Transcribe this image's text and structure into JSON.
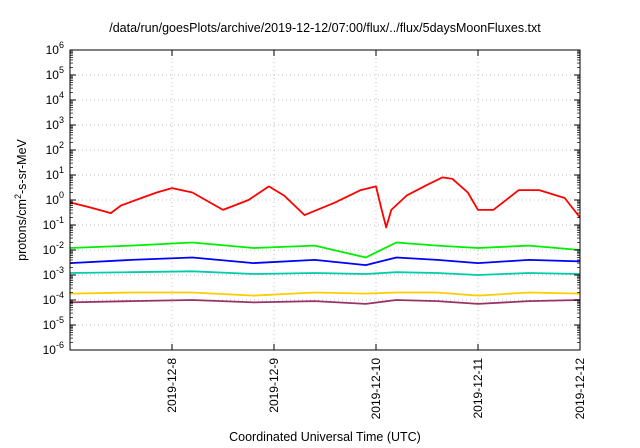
{
  "chart_data": {
    "type": "line",
    "title": "/data/run/goesPlots/archive/2019-12-12/07:00/flux/../flux/5daysMoonFluxes.txt",
    "xlabel": "Coordinated Universal Time (UTC)",
    "ylabel": {
      "prefix": "protons/cm",
      "sup": "2",
      "suffix": "-s-sr-MeV"
    },
    "yscale": "log",
    "ylim_exp": [
      -6,
      6
    ],
    "y_ticks": [
      {
        "base": "10",
        "exp": "6"
      },
      {
        "base": "10",
        "exp": "5"
      },
      {
        "base": "10",
        "exp": "4"
      },
      {
        "base": "10",
        "exp": "3"
      },
      {
        "base": "10",
        "exp": "2"
      },
      {
        "base": "10",
        "exp": "1"
      },
      {
        "base": "10",
        "exp": "0"
      },
      {
        "base": "10",
        "exp": "-1"
      },
      {
        "base": "10",
        "exp": "-2"
      },
      {
        "base": "10",
        "exp": "-3"
      },
      {
        "base": "10",
        "exp": "-4"
      },
      {
        "base": "10",
        "exp": "-5"
      },
      {
        "base": "10",
        "exp": "-6"
      }
    ],
    "xlim": [
      "2019-12-07 07:00",
      "2019-12-12 07:00"
    ],
    "x_ticks": [
      "2019-12-8",
      "2019-12-9",
      "2019-12-10",
      "2019-12-11",
      "2019-12-12"
    ],
    "grid": true,
    "series": [
      {
        "color": "#ff0000",
        "x": [
          0.0,
          0.2,
          0.4,
          0.5,
          0.7,
          0.85,
          1.0,
          1.2,
          1.5,
          1.75,
          1.95,
          2.1,
          2.3,
          2.6,
          2.85,
          3.0,
          3.05,
          3.1,
          3.15,
          3.3,
          3.5,
          3.65,
          3.75,
          3.9,
          4.0,
          4.15,
          4.4,
          4.6,
          4.85,
          5.0
        ],
        "y": [
          0.8,
          0.5,
          0.3,
          0.6,
          1.2,
          2.0,
          3.0,
          2.0,
          0.4,
          1.0,
          3.5,
          1.5,
          0.25,
          0.8,
          2.5,
          3.5,
          0.5,
          0.08,
          0.4,
          1.5,
          4.0,
          8.0,
          7.0,
          2.0,
          0.4,
          0.4,
          2.5,
          2.5,
          1.2,
          0.2
        ]
      },
      {
        "color": "#00ee00",
        "x": [
          0.0,
          0.6,
          1.2,
          1.8,
          2.4,
          2.9,
          3.2,
          3.6,
          4.0,
          4.5,
          5.0
        ],
        "y": [
          0.012,
          0.015,
          0.02,
          0.012,
          0.015,
          0.005,
          0.02,
          0.015,
          0.012,
          0.015,
          0.01
        ]
      },
      {
        "color": "#0000ff",
        "x": [
          0.0,
          0.6,
          1.2,
          1.8,
          2.4,
          2.9,
          3.2,
          3.6,
          4.0,
          4.5,
          5.0
        ],
        "y": [
          0.003,
          0.004,
          0.005,
          0.003,
          0.004,
          0.0025,
          0.005,
          0.004,
          0.003,
          0.004,
          0.0035
        ]
      },
      {
        "color": "#00ccaa",
        "x": [
          0.0,
          0.6,
          1.2,
          1.8,
          2.4,
          2.9,
          3.2,
          3.6,
          4.0,
          4.5,
          5.0
        ],
        "y": [
          0.0012,
          0.0013,
          0.0014,
          0.0011,
          0.0012,
          0.0011,
          0.0013,
          0.0012,
          0.001,
          0.0012,
          0.0011
        ]
      },
      {
        "color": "#ffcc00",
        "x": [
          0.0,
          0.6,
          1.2,
          1.8,
          2.4,
          2.9,
          3.2,
          3.6,
          4.0,
          4.5,
          5.0
        ],
        "y": [
          0.00018,
          0.0002,
          0.0002,
          0.00015,
          0.0002,
          0.00018,
          0.0002,
          0.0002,
          0.00015,
          0.0002,
          0.00018
        ]
      },
      {
        "color": "#993366",
        "x": [
          0.0,
          0.6,
          1.2,
          1.8,
          2.4,
          2.9,
          3.2,
          3.6,
          4.0,
          4.5,
          5.0
        ],
        "y": [
          8e-05,
          9e-05,
          0.0001,
          8e-05,
          9e-05,
          7e-05,
          0.0001,
          9e-05,
          7e-05,
          9e-05,
          0.0001
        ]
      }
    ]
  }
}
